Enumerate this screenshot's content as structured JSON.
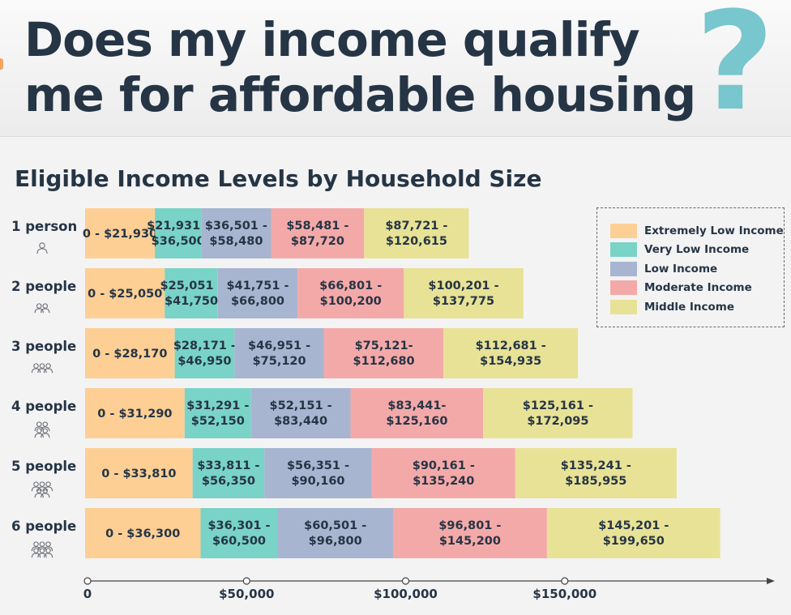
{
  "header": {
    "title_line1": "Does my income qualify",
    "title_line2": "me for affordable housing",
    "question_mark": "?"
  },
  "chart_data": {
    "type": "bar",
    "orientation": "horizontal",
    "stacked": true,
    "title": "Eligible Income Levels by Household Size",
    "categories": [
      "1 person",
      "2 people",
      "3 people",
      "4 people",
      "5 people",
      "6 people"
    ],
    "series": [
      {
        "name": "Extremely Low Income",
        "color": "#fdcf95",
        "ranges": [
          [
            0,
            21930
          ],
          [
            0,
            25050
          ],
          [
            0,
            28170
          ],
          [
            0,
            31290
          ],
          [
            0,
            33810
          ],
          [
            0,
            36300
          ]
        ],
        "labels": [
          "0 - $21,930",
          "0 - $25,050",
          "0 - $28,170",
          "0 - $31,290",
          "0 - $33,810",
          "0 - $36,300"
        ]
      },
      {
        "name": "Very Low Income",
        "color": "#79d3c7",
        "ranges": [
          [
            21931,
            36500
          ],
          [
            25051,
            41750
          ],
          [
            28171,
            46950
          ],
          [
            31291,
            52150
          ],
          [
            33811,
            56350
          ],
          [
            36301,
            60500
          ]
        ],
        "labels": [
          "$21,931 - $36,500",
          "$25,051 - $41,750",
          "$28,171 - $46,950",
          "$31,291 - $52,150",
          "$33,811 - $56,350",
          "$36,301 - $60,500"
        ]
      },
      {
        "name": "Low Income",
        "color": "#a8b5d0",
        "ranges": [
          [
            36501,
            58480
          ],
          [
            41751,
            66800
          ],
          [
            46951,
            75120
          ],
          [
            52151,
            83440
          ],
          [
            56351,
            90160
          ],
          [
            60501,
            96800
          ]
        ],
        "labels": [
          "$36,501 - $58,480",
          "$41,751 - $66,800",
          "$46,951 - $75,120",
          "$52,151 - $83,440",
          "$56,351 - $90,160",
          "$60,501 - $96,800"
        ]
      },
      {
        "name": "Moderate Income",
        "color": "#f4a9a9",
        "ranges": [
          [
            58481,
            87720
          ],
          [
            66801,
            100200
          ],
          [
            75121,
            112680
          ],
          [
            83441,
            125160
          ],
          [
            90161,
            135240
          ],
          [
            96801,
            145200
          ]
        ],
        "labels": [
          "$58,481 - $87,720",
          "$66,801 - $100,200",
          "$75,121- $112,680",
          "$83,441- $125,160",
          "$90,161 - $135,240",
          "$96,801 - $145,200"
        ]
      },
      {
        "name": "Middle Income",
        "color": "#e8e296",
        "ranges": [
          [
            87721,
            120615
          ],
          [
            100201,
            137775
          ],
          [
            112681,
            154935
          ],
          [
            125161,
            172095
          ],
          [
            135241,
            185955
          ],
          [
            145201,
            199650
          ]
        ],
        "labels": [
          "$87,721 - $120,615",
          "$100,201 - $137,775",
          "$112,681 - $154,935",
          "$125,161 - $172,095",
          "$135,241 - $185,955",
          "$145,201 - $199,650"
        ]
      }
    ],
    "x_ticks": [
      {
        "value": 0,
        "label": "0"
      },
      {
        "value": 50000,
        "label": "$50,000"
      },
      {
        "value": 100000,
        "label": "$100,000"
      },
      {
        "value": 150000,
        "label": "$150,000"
      }
    ],
    "xlim": [
      0,
      216000
    ],
    "legend_position": "top-right",
    "grid": false
  }
}
